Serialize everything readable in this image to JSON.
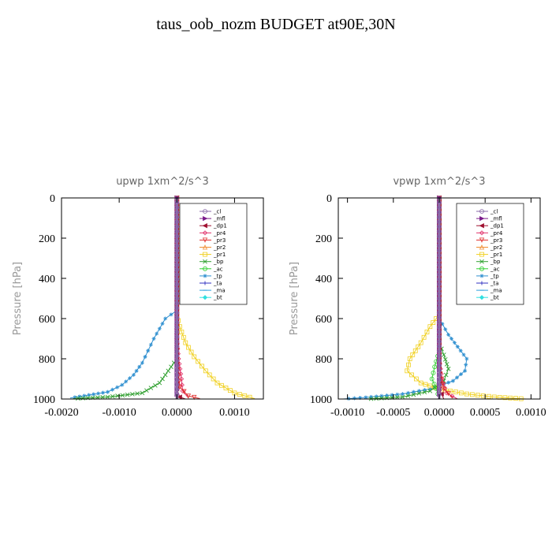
{
  "figure": {
    "title": "taus_oob_nozm  BUDGET at90E,30N"
  },
  "legend_entries": [
    {
      "label": "_cl",
      "color": "#8a6aa8",
      "marker": "circle"
    },
    {
      "label": "_mfl",
      "color": "#7a1a8a",
      "marker": "triangle-right"
    },
    {
      "label": "_dp1",
      "color": "#a01030",
      "marker": "triangle-left"
    },
    {
      "label": "_pr4",
      "color": "#e0306a",
      "marker": "diamond"
    },
    {
      "label": "_pr3",
      "color": "#e03030",
      "marker": "triangle-down"
    },
    {
      "label": "_pr2",
      "color": "#f08c30",
      "marker": "triangle-up"
    },
    {
      "label": "_pr1",
      "color": "#f0d020",
      "marker": "square"
    },
    {
      "label": "_bp",
      "color": "#30a030",
      "marker": "x"
    },
    {
      "label": "_ac",
      "color": "#30d030",
      "marker": "circle"
    },
    {
      "label": "_tp",
      "color": "#3090d0",
      "marker": "star"
    },
    {
      "label": "_ta",
      "color": "#3030c0",
      "marker": "plus"
    },
    {
      "label": "_ma",
      "color": "#30a0e0",
      "marker": "dash"
    },
    {
      "label": "_bt",
      "color": "#30e0e0",
      "marker": "diamond-filled"
    }
  ],
  "chart_data": [
    {
      "type": "line",
      "title": "upwp   1xm^2/s^3",
      "xlabel": "",
      "ylabel": "Pressure [hPa]",
      "xlim": [
        -0.002,
        0.0015
      ],
      "ylim": [
        1000,
        0
      ],
      "xticks": [
        -0.002,
        -0.001,
        0.0,
        0.001
      ],
      "xtick_labels": [
        "-0.0020",
        "-0.0010",
        "0.0000",
        "0.0010"
      ],
      "yticks": [
        0,
        200,
        400,
        600,
        800,
        1000
      ],
      "ytick_labels": [
        "0",
        "200",
        "400",
        "600",
        "800",
        "1000"
      ],
      "legend_position": "top-right",
      "series": [
        {
          "name": "_tp",
          "color": "#3090d0",
          "points": [
            [
              0,
              0
            ],
            [
              0,
              560
            ],
            [
              -0.0002,
              600
            ],
            [
              -0.0003,
              650
            ],
            [
              -0.0004,
              700
            ],
            [
              -0.0005,
              760
            ],
            [
              -0.0006,
              820
            ],
            [
              -0.00075,
              880
            ],
            [
              -0.00095,
              930
            ],
            [
              -0.0012,
              965
            ],
            [
              -0.00185,
              995
            ]
          ]
        },
        {
          "name": "_bp",
          "color": "#30a030",
          "points": [
            [
              0,
              0
            ],
            [
              0,
              800
            ],
            [
              -0.00015,
              860
            ],
            [
              -0.0003,
              920
            ],
            [
              -0.0006,
              970
            ],
            [
              -0.0012,
              990
            ],
            [
              -0.0018,
              998
            ]
          ]
        },
        {
          "name": "_pr1",
          "color": "#f0d020",
          "points": [
            [
              0,
              0
            ],
            [
              0,
              580
            ],
            [
              5e-05,
              640
            ],
            [
              0.00015,
              720
            ],
            [
              0.0003,
              790
            ],
            [
              0.0005,
              860
            ],
            [
              0.0007,
              920
            ],
            [
              0.001,
              970
            ],
            [
              0.00135,
              998
            ]
          ]
        },
        {
          "name": "_pr4",
          "color": "#e0306a",
          "points": [
            [
              0,
              0
            ],
            [
              0,
              700
            ],
            [
              3e-05,
              800
            ],
            [
              8e-05,
              900
            ],
            [
              0.0001,
              960
            ],
            [
              0.0002,
              995
            ]
          ]
        },
        {
          "name": "_pr3",
          "color": "#e03030",
          "points": [
            [
              0,
              0
            ],
            [
              0,
              800
            ],
            [
              5e-05,
              940
            ],
            [
              0.0002,
              985
            ],
            [
              0.0004,
              998
            ]
          ]
        },
        {
          "name": "_dp1",
          "color": "#a01030",
          "points": [
            [
              0,
              0
            ],
            [
              0,
              950
            ],
            [
              5e-05,
              990
            ],
            [
              0.00015,
              1000
            ]
          ]
        },
        {
          "name": "_mfl",
          "color": "#7a1a8a",
          "points": [
            [
              0,
              0
            ],
            [
              0,
              1000
            ]
          ]
        },
        {
          "name": "_cl",
          "color": "#8a6aa8",
          "points": [
            [
              0,
              0
            ],
            [
              0,
              1000
            ]
          ]
        }
      ]
    },
    {
      "type": "line",
      "title": "vpwp   1xm^2/s^3",
      "xlabel": "",
      "ylabel": "Pressure [hPa]",
      "xlim": [
        -0.0011,
        0.0011
      ],
      "ylim": [
        1000,
        0
      ],
      "xticks": [
        -0.001,
        -0.0005,
        0.0,
        0.0005,
        0.001
      ],
      "xtick_labels": [
        "-0.0010",
        "-0.0005",
        "0.0000",
        "0.0005",
        "0.0010"
      ],
      "yticks": [
        0,
        200,
        400,
        600,
        800,
        1000
      ],
      "ytick_labels": [
        "0",
        "200",
        "400",
        "600",
        "800",
        "1000"
      ],
      "legend_position": "top-right",
      "series": [
        {
          "name": "_tp",
          "color": "#3090d0",
          "points": [
            [
              0,
              0
            ],
            [
              0,
              600
            ],
            [
              0.0001,
              680
            ],
            [
              0.0002,
              740
            ],
            [
              0.0003,
              800
            ],
            [
              0.00028,
              860
            ],
            [
              0.00015,
              910
            ],
            [
              -0.0001,
              950
            ],
            [
              -0.0004,
              975
            ],
            [
              -0.0008,
              992
            ],
            [
              -0.00105,
              1000
            ]
          ]
        },
        {
          "name": "_pr1",
          "color": "#f0d020",
          "points": [
            [
              0,
              0
            ],
            [
              0,
              580
            ],
            [
              -0.0001,
              640
            ],
            [
              -0.0002,
              720
            ],
            [
              -0.00032,
              800
            ],
            [
              -0.00035,
              860
            ],
            [
              -0.0002,
              920
            ],
            [
              0,
              950
            ],
            [
              0.0003,
              975
            ],
            [
              0.0006,
              990
            ],
            [
              0.00095,
              1000
            ]
          ]
        },
        {
          "name": "_bp",
          "color": "#30a030",
          "points": [
            [
              0,
              0
            ],
            [
              0,
              720
            ],
            [
              5e-05,
              780
            ],
            [
              0.0001,
              850
            ],
            [
              5e-05,
              910
            ],
            [
              -0.0001,
              960
            ],
            [
              -0.0004,
              990
            ],
            [
              -0.0008,
              1000
            ]
          ]
        },
        {
          "name": "_ac",
          "color": "#30d030",
          "points": [
            [
              0,
              0
            ],
            [
              0,
              760
            ],
            [
              -5e-05,
              840
            ],
            [
              -8e-05,
              900
            ],
            [
              -3e-05,
              950
            ],
            [
              0,
              1000
            ]
          ]
        },
        {
          "name": "_pr4",
          "color": "#e0306a",
          "points": [
            [
              0,
              0
            ],
            [
              0,
              800
            ],
            [
              3e-05,
              900
            ],
            [
              8e-05,
              970
            ],
            [
              0.0002,
              1000
            ]
          ]
        },
        {
          "name": "_pr3",
          "color": "#e03030",
          "points": [
            [
              0,
              0
            ],
            [
              0,
              850
            ],
            [
              5e-05,
              950
            ],
            [
              0.00015,
              995
            ]
          ]
        },
        {
          "name": "_dp1",
          "color": "#a01030",
          "points": [
            [
              0,
              0
            ],
            [
              0,
              950
            ],
            [
              5e-05,
              1000
            ]
          ]
        },
        {
          "name": "_mfl",
          "color": "#7a1a8a",
          "points": [
            [
              0,
              0
            ],
            [
              0,
              1000
            ]
          ]
        },
        {
          "name": "_cl",
          "color": "#8a6aa8",
          "points": [
            [
              0,
              0
            ],
            [
              0,
              1000
            ]
          ]
        }
      ]
    }
  ]
}
